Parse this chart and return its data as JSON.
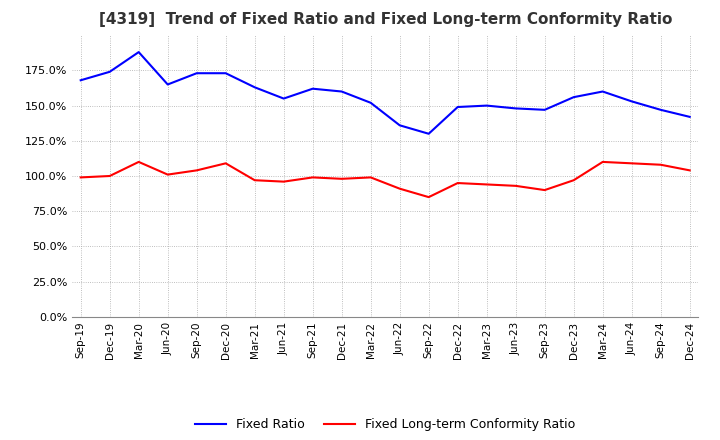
{
  "title": "[4319]  Trend of Fixed Ratio and Fixed Long-term Conformity Ratio",
  "x_labels": [
    "Sep-19",
    "Dec-19",
    "Mar-20",
    "Jun-20",
    "Sep-20",
    "Dec-20",
    "Mar-21",
    "Jun-21",
    "Sep-21",
    "Dec-21",
    "Mar-22",
    "Jun-22",
    "Sep-22",
    "Dec-22",
    "Mar-23",
    "Jun-23",
    "Sep-23",
    "Dec-23",
    "Mar-24",
    "Jun-24",
    "Sep-24",
    "Dec-24"
  ],
  "fixed_ratio": [
    168,
    174,
    188,
    165,
    173,
    173,
    163,
    155,
    162,
    160,
    152,
    136,
    130,
    149,
    150,
    148,
    147,
    156,
    160,
    153,
    147,
    142
  ],
  "fixed_lt_ratio": [
    99,
    100,
    110,
    101,
    104,
    109,
    97,
    96,
    99,
    98,
    99,
    91,
    85,
    95,
    94,
    93,
    90,
    97,
    110,
    109,
    108,
    104
  ],
  "fixed_ratio_color": "#0000FF",
  "fixed_lt_ratio_color": "#FF0000",
  "background_color": "#FFFFFF",
  "grid_color": "#AAAAAA",
  "ylim": [
    0,
    200
  ],
  "yticks": [
    0,
    25,
    50,
    75,
    100,
    125,
    150,
    175
  ],
  "title_fontsize": 11,
  "legend_labels": [
    "Fixed Ratio",
    "Fixed Long-term Conformity Ratio"
  ]
}
